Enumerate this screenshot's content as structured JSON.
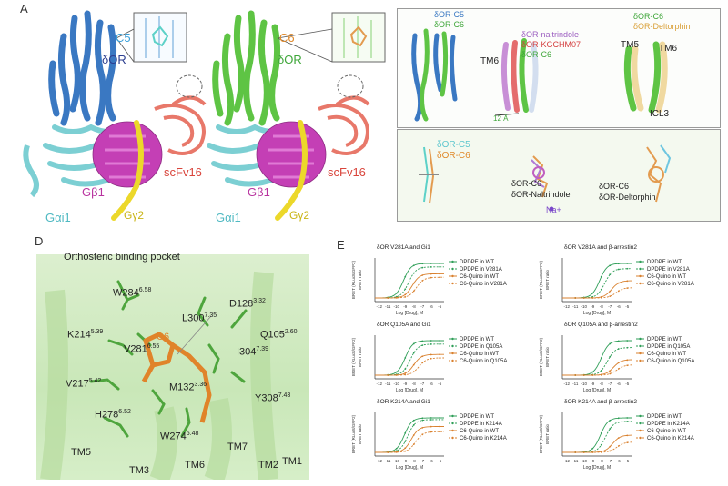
{
  "panel_labels": {
    "a": "A",
    "b": "B",
    "c": "C",
    "d": "D",
    "e": "E"
  },
  "panel_a": {
    "left_zoom_label": "C5",
    "left_receptor": "δOR",
    "left_galpha": "Gαi1",
    "left_gbeta": "Gβ1",
    "left_ggamma": "Gγ2",
    "left_scfv": "scFv16",
    "right_zoom_label": "C6",
    "right_receptor": "δOR",
    "right_galpha": "Gαi1",
    "right_gbeta": "Gβ1",
    "right_ggamma": "Gγ2",
    "right_scfv": "scFv16"
  },
  "panel_b": {
    "leg1_a": "δOR-C5",
    "leg1_b": "δOR-C6",
    "leg2_a": "δOR-naltrindole",
    "leg2_b": "δOR-KGCHM07",
    "leg2_c": "δOR-C6",
    "tm6": "TM6",
    "distance": "12 Å",
    "leg3_a": "δOR-C6",
    "leg3_b": "δOR-Deltorphin",
    "tm5": "TM5",
    "tm6b": "TM6",
    "icl3": "ICL3"
  },
  "panel_c": {
    "l1_a": "δOR-C5",
    "l1_b": "δOR-C6",
    "l2_a": "δOR-C6",
    "l2_b": "δOR-Naltrindole",
    "na": "Na+",
    "l3_a": "δOR-C6",
    "l3_b": "δOR-Deltorphin"
  },
  "panel_d": {
    "title": "Orthosteric binding pocket",
    "ligand": "C6",
    "residues": [
      {
        "name": "W284",
        "sup": "6.58"
      },
      {
        "name": "L300",
        "sup": "7.35"
      },
      {
        "name": "D128",
        "sup": "3.32"
      },
      {
        "name": "Q105",
        "sup": "2.60"
      },
      {
        "name": "K214",
        "sup": "5.39"
      },
      {
        "name": "V281",
        "sup": "6.55"
      },
      {
        "name": "I304",
        "sup": "7.39"
      },
      {
        "name": "V217",
        "sup": "5.42"
      },
      {
        "name": "M132",
        "sup": "3.36"
      },
      {
        "name": "Y308",
        "sup": "7.43"
      },
      {
        "name": "H278",
        "sup": "6.52"
      },
      {
        "name": "W274",
        "sup": "6.48"
      }
    ],
    "tms": [
      "TM5",
      "TM3",
      "TM6",
      "TM7",
      "TM2",
      "TM1"
    ]
  },
  "panel_e": {
    "y_label_gi": "BRET (RLuc8/GFP2)",
    "y_label_arr": "BRET (RLuc8/GFP2)",
    "y_sub": "BRET ratio",
    "x_label": "Log [Drug], M",
    "x_ticks": [
      "-12",
      "-11",
      "-10",
      "-9",
      "-8",
      "-7",
      "-6",
      "-5"
    ],
    "colors": {
      "dpdpe": "#2e9e57",
      "quino": "#d9812f"
    },
    "plots": [
      {
        "title": "δOR V281A and Gi1",
        "legend": [
          "DPDPE in WT",
          "DPDPE in V281A",
          "C6-Quino in WT",
          "C6-Quino in V281A"
        ]
      },
      {
        "title": "δOR V281A and β-arrestin2",
        "legend": [
          "DPDPE in WT",
          "DPDPE in V281A",
          "C6-Quino in WT",
          "C6-Quino in V281A"
        ]
      },
      {
        "title": "δOR Q105A and Gi1",
        "legend": [
          "DPDPE in WT",
          "DPDPE in Q105A",
          "C6-Quino in WT",
          "C6-Quino in Q105A"
        ]
      },
      {
        "title": "δOR Q105A and β-arrestin2",
        "legend": [
          "DPDPE in WT",
          "DPDPE in Q105A",
          "C6-Quino in WT",
          "C6-Quino in Q105A"
        ]
      },
      {
        "title": "δOR K214A and Gi1",
        "legend": [
          "DPDPE in WT",
          "DPDPE in K214A",
          "C6-Quino in WT",
          "C6-Quino in K214A"
        ]
      },
      {
        "title": "δOR K214A and β-arrestin2",
        "legend": [
          "DPDPE in WT",
          "DPDPE in K214A",
          "C6-Quino in WT",
          "C6-Quino in K214A"
        ]
      }
    ]
  }
}
